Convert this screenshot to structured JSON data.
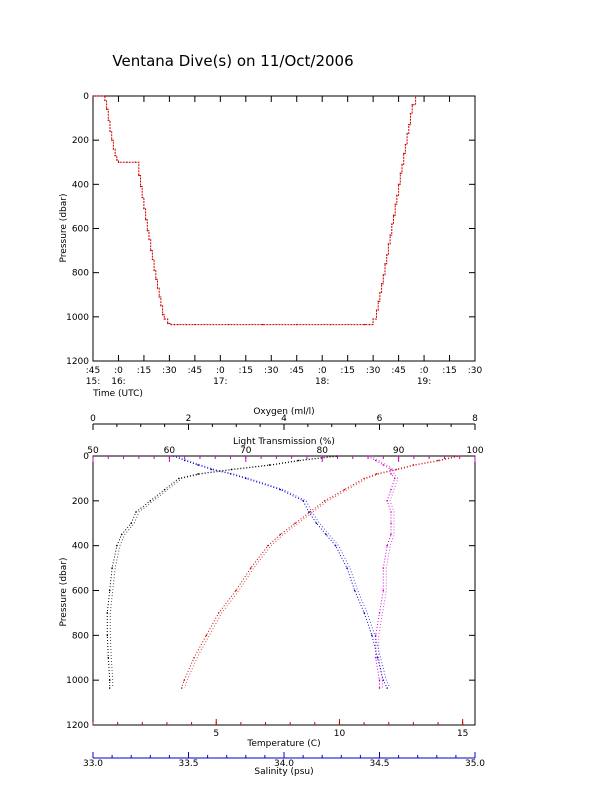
{
  "title": "Ventana Dive(s) on 11/Oct/2006",
  "colors": {
    "axis": "#000000",
    "depth_trace": "#cc0000",
    "temperature": "#cc0000",
    "salinity": "#0000cc",
    "transmission": "#cc00cc",
    "oxygen": "#000000"
  },
  "chart_data": [
    {
      "type": "line",
      "name": "dive-depth-time",
      "title": "Ventana Dive(s) on 11/Oct/2006",
      "xlabel": "Time (UTC)",
      "ylabel": "Pressure (dbar)",
      "x_unit": "minutes since 15:45 UTC",
      "xlim": [
        0,
        225
      ],
      "ylim": [
        1200,
        0
      ],
      "grid": false,
      "x_ticks": [
        {
          "v": 0,
          "minute": ":45",
          "hour": "15:"
        },
        {
          "v": 15,
          "minute": ":0",
          "hour": "16:"
        },
        {
          "v": 30,
          "minute": ":15",
          "hour": ""
        },
        {
          "v": 45,
          "minute": ":30",
          "hour": ""
        },
        {
          "v": 60,
          "minute": ":45",
          "hour": ""
        },
        {
          "v": 75,
          "minute": ":0",
          "hour": "17:"
        },
        {
          "v": 90,
          "minute": ":15",
          "hour": ""
        },
        {
          "v": 105,
          "minute": ":30",
          "hour": ""
        },
        {
          "v": 120,
          "minute": ":45",
          "hour": ""
        },
        {
          "v": 135,
          "minute": ":0",
          "hour": "18:"
        },
        {
          "v": 150,
          "minute": ":15",
          "hour": ""
        },
        {
          "v": 165,
          "minute": ":30",
          "hour": ""
        },
        {
          "v": 180,
          "minute": ":45",
          "hour": ""
        },
        {
          "v": 195,
          "minute": ":0",
          "hour": "19:"
        },
        {
          "v": 210,
          "minute": ":15",
          "hour": ""
        },
        {
          "v": 225,
          "minute": ":30",
          "hour": ""
        }
      ],
      "y_ticks": [
        "0",
        "200",
        "400",
        "600",
        "800",
        "1000",
        "1200"
      ],
      "y_tick_values": [
        0,
        200,
        400,
        600,
        800,
        1000,
        1200
      ],
      "series": [
        {
          "x": [
            0,
            5,
            7,
            8,
            9,
            10,
            11,
            12,
            13,
            14,
            15,
            20,
            25,
            27,
            28,
            29,
            30,
            31,
            32,
            33,
            34,
            35,
            36,
            37,
            38,
            39,
            40,
            41,
            42,
            44,
            46,
            48,
            50,
            55,
            60,
            80,
            100,
            120,
            140,
            160,
            163,
            165,
            167,
            168,
            169,
            170,
            171,
            172,
            173,
            174,
            175,
            176,
            177,
            178,
            179,
            180,
            181,
            182,
            183,
            184,
            185,
            186,
            187,
            188,
            190
          ],
          "y": [
            0,
            0,
            20,
            60,
            110,
            160,
            200,
            240,
            270,
            290,
            300,
            300,
            300,
            360,
            410,
            460,
            510,
            560,
            610,
            650,
            700,
            740,
            790,
            830,
            870,
            910,
            950,
            990,
            1010,
            1030,
            1035,
            1035,
            1035,
            1035,
            1035,
            1035,
            1035,
            1035,
            1035,
            1035,
            1035,
            1010,
            970,
            930,
            890,
            850,
            810,
            760,
            720,
            670,
            630,
            580,
            540,
            490,
            450,
            400,
            350,
            310,
            260,
            220,
            170,
            130,
            80,
            40,
            0
          ]
        }
      ]
    },
    {
      "type": "scatter",
      "name": "profile-plot",
      "ylabel": "Pressure (dbar)",
      "ylim": [
        1200,
        0
      ],
      "grid": false,
      "y_ticks": [
        "0",
        "200",
        "400",
        "600",
        "800",
        "1000",
        "1200"
      ],
      "y_tick_values": [
        0,
        200,
        400,
        600,
        800,
        1000,
        1200
      ],
      "axes": {
        "oxygen": {
          "label": "Oxygen (ml/l)",
          "range": [
            0,
            8
          ],
          "ticks": [
            "0",
            "2",
            "4",
            "6",
            "8"
          ],
          "tick_values": [
            0,
            2,
            4,
            6,
            8
          ]
        },
        "transmission": {
          "label": "Light Transmission (%)",
          "range": [
            50,
            100
          ],
          "ticks": [
            "50",
            "60",
            "70",
            "80",
            "90",
            "100"
          ],
          "tick_values": [
            50,
            60,
            70,
            80,
            90,
            100
          ]
        },
        "temperature": {
          "label": "Temperature (C)",
          "range": [
            0,
            15.5
          ],
          "ticks": [
            "5",
            "10",
            "15"
          ],
          "tick_values": [
            5,
            10,
            15
          ]
        },
        "salinity": {
          "label": "Salinity (psu)",
          "range": [
            33.0,
            35.0
          ],
          "ticks": [
            "33.0",
            "33.5",
            "34.0",
            "34.5",
            "35.0"
          ],
          "tick_values": [
            33.0,
            33.5,
            34.0,
            34.5,
            35.0
          ]
        }
      },
      "series": [
        {
          "axis": "oxygen",
          "pressure": [
            0,
            20,
            40,
            60,
            80,
            100,
            150,
            200,
            250,
            300,
            350,
            400,
            500,
            600,
            700,
            800,
            900,
            1000,
            1035
          ],
          "values": [
            5.1,
            4.3,
            3.7,
            2.9,
            2.2,
            1.8,
            1.5,
            1.2,
            0.9,
            0.8,
            0.6,
            0.5,
            0.4,
            0.35,
            0.3,
            0.3,
            0.32,
            0.35,
            0.35
          ]
        },
        {
          "axis": "transmission",
          "pressure": [
            0,
            20,
            40,
            60,
            80,
            100,
            150,
            200,
            250,
            300,
            350,
            400,
            500,
            600,
            700,
            800,
            900,
            1000,
            1035
          ],
          "values": [
            86,
            87,
            88,
            89,
            89,
            89.5,
            89,
            88.5,
            89,
            89,
            89,
            88.5,
            88,
            88,
            87.5,
            87,
            87,
            87.5,
            87.5
          ]
        },
        {
          "axis": "temperature",
          "pressure": [
            0,
            20,
            40,
            60,
            80,
            100,
            150,
            200,
            250,
            300,
            350,
            400,
            500,
            600,
            700,
            800,
            900,
            1000,
            1035
          ],
          "values": [
            14.8,
            14.0,
            13.0,
            12.3,
            11.5,
            11.0,
            10.2,
            9.4,
            8.8,
            8.2,
            7.6,
            7.1,
            6.4,
            5.8,
            5.1,
            4.6,
            4.1,
            3.7,
            3.6
          ]
        },
        {
          "axis": "salinity",
          "pressure": [
            0,
            20,
            40,
            60,
            80,
            100,
            150,
            200,
            250,
            300,
            350,
            400,
            500,
            600,
            700,
            800,
            900,
            1000,
            1035
          ],
          "values": [
            33.42,
            33.48,
            33.55,
            33.62,
            33.72,
            33.8,
            33.98,
            34.1,
            34.13,
            34.17,
            34.22,
            34.27,
            34.33,
            34.37,
            34.42,
            34.46,
            34.49,
            34.52,
            34.54
          ]
        }
      ]
    }
  ]
}
